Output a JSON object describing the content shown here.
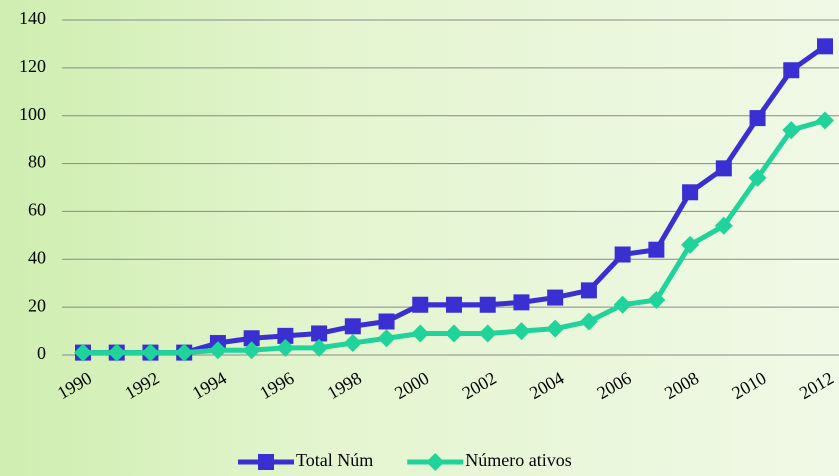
{
  "chart_data": {
    "type": "line",
    "categories": [
      "1990",
      null,
      "1992",
      null,
      "1994",
      null,
      "1996",
      null,
      "1998",
      null,
      "2000",
      null,
      "2002",
      null,
      "2004",
      null,
      "2006",
      null,
      "2008",
      null,
      "2010",
      null,
      "2012"
    ],
    "series": [
      {
        "name": "Total Núm",
        "color": "#3a2fd0",
        "marker": "square",
        "values": [
          1,
          1,
          1,
          1,
          5,
          7,
          8,
          9,
          12,
          14,
          21,
          21,
          21,
          22,
          24,
          27,
          42,
          44,
          68,
          78,
          99,
          119,
          129
        ]
      },
      {
        "name": "Número ativos",
        "color": "#1fd39a",
        "marker": "diamond",
        "values": [
          1,
          1,
          1,
          1,
          2,
          2,
          3,
          3,
          5,
          7,
          9,
          9,
          9,
          10,
          11,
          14,
          21,
          23,
          46,
          54,
          74,
          94,
          98
        ]
      }
    ],
    "ylim": [
      0,
      140
    ],
    "yticks": [
      0,
      20,
      40,
      60,
      80,
      100,
      120,
      140
    ],
    "grid": true,
    "legend": "bottom"
  }
}
